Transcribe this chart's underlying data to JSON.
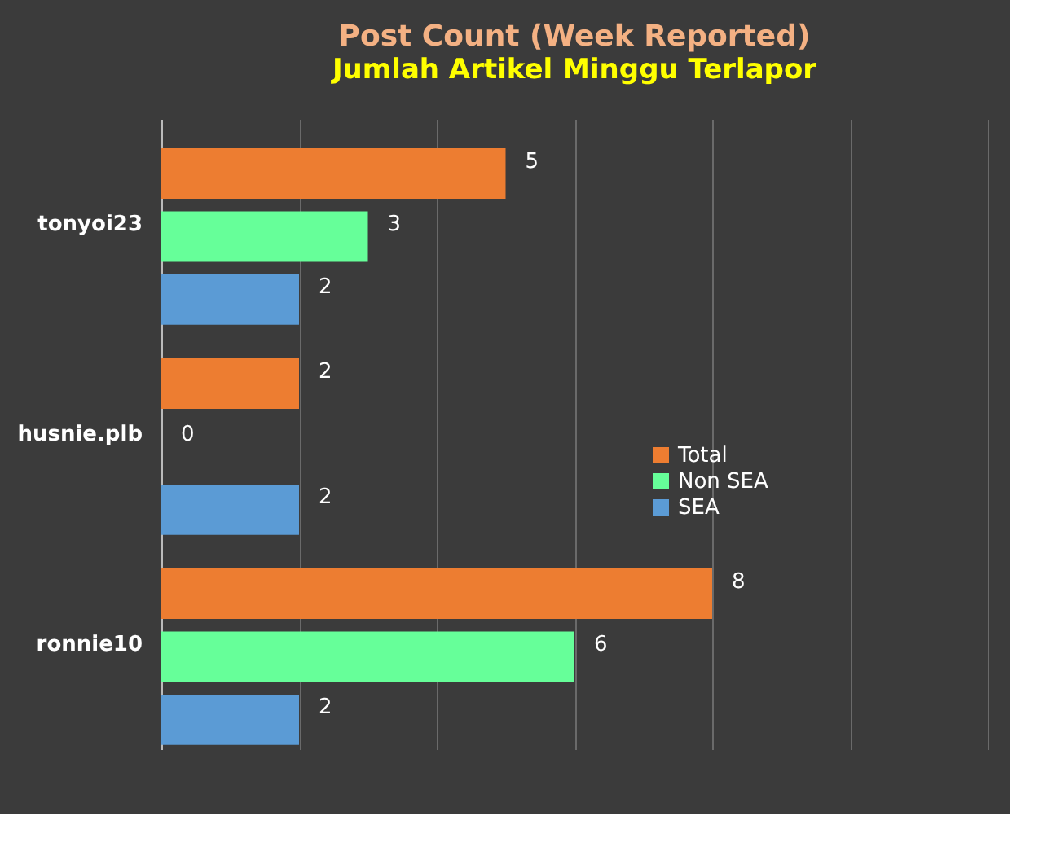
{
  "chart_data": {
    "type": "bar",
    "orientation": "horizontal",
    "title": "Post Count (Week Reported)",
    "subtitle": "Jumlah Artikel Minggu Terlapor",
    "categories": [
      "tonyoi23",
      "husnie.plb",
      "ronnie10"
    ],
    "series": [
      {
        "name": "Total",
        "color": "#ed7d31",
        "values": [
          5,
          2,
          8
        ]
      },
      {
        "name": "Non SEA",
        "color": "#66ff99",
        "values": [
          3,
          0,
          6
        ]
      },
      {
        "name": "SEA",
        "color": "#5b9bd5",
        "values": [
          2,
          2,
          2
        ]
      }
    ],
    "xlim": [
      0,
      12
    ],
    "xticks": [
      {
        "value": 0,
        "label": null
      },
      {
        "value": 2,
        "label": null
      },
      {
        "value": 4,
        "label": null
      },
      {
        "value": 6,
        "label": null
      },
      {
        "value": 8,
        "label": null
      },
      {
        "value": 10,
        "label": null
      },
      {
        "value": 12,
        "label": null
      }
    ],
    "grid": "x",
    "tick_labels": "y",
    "data_labels": true,
    "legend": "right"
  }
}
